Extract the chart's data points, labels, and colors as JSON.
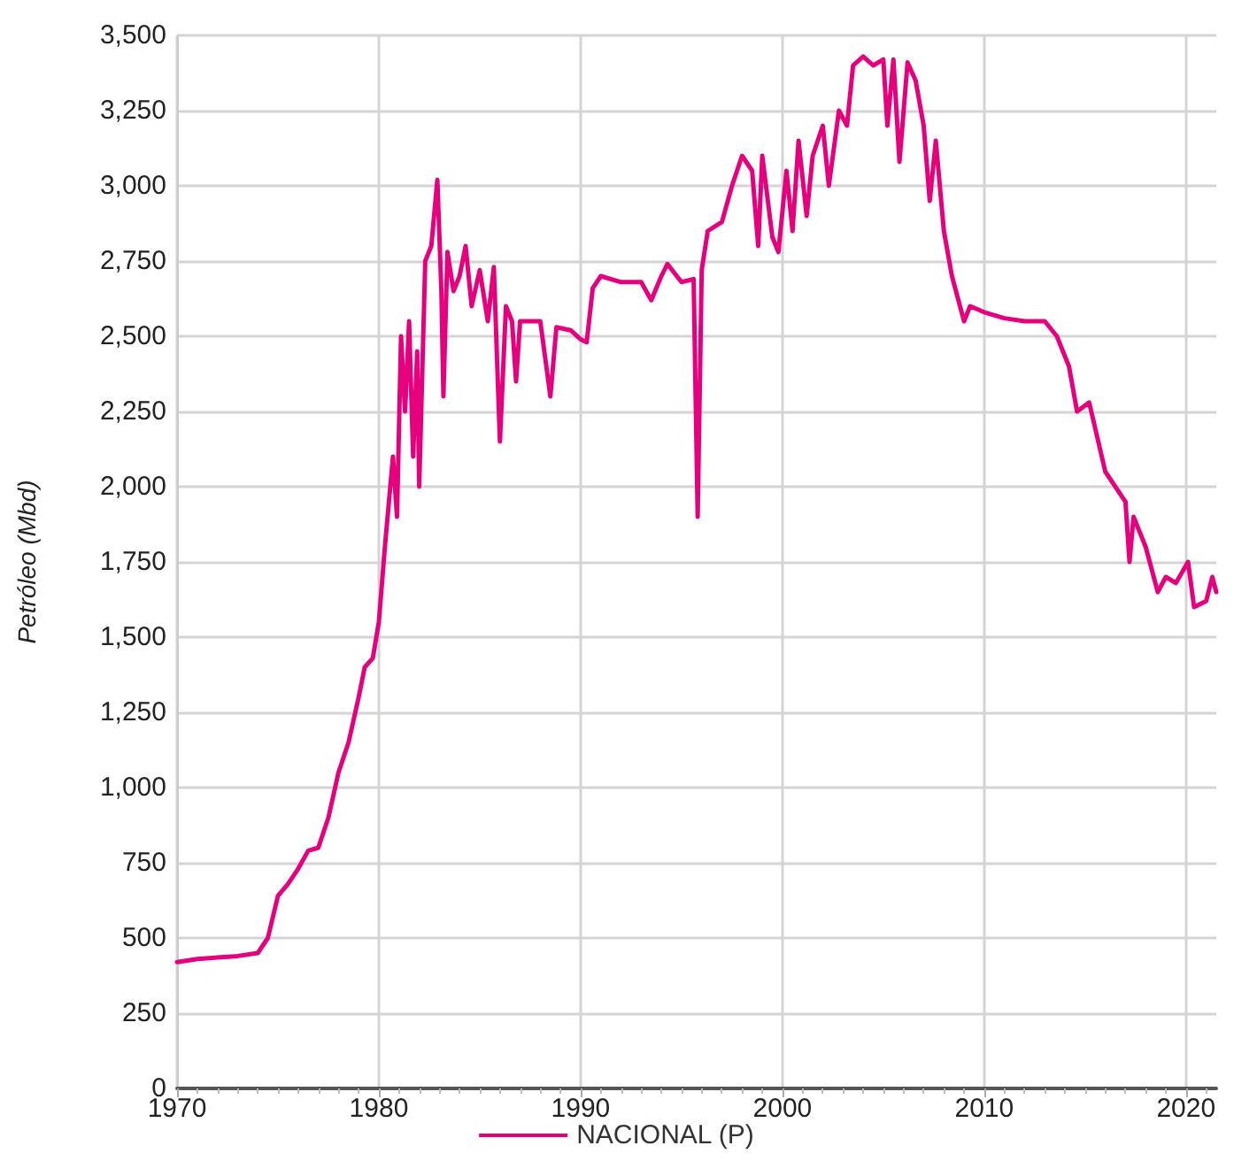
{
  "chart_data": {
    "type": "line",
    "ylabel": "Petróleo (Mbd)",
    "legend": "bottom",
    "grid": true,
    "marker": "none",
    "line_style": "solid",
    "xlim": [
      1970,
      2021.5
    ],
    "xticks": [
      1970,
      1980,
      1990,
      2000,
      2010,
      2020
    ],
    "ylim": [
      0,
      3500
    ],
    "yticks": [
      {
        "value": 0,
        "label": "0"
      },
      {
        "value": 250,
        "label": "250"
      },
      {
        "value": 500,
        "label": "500"
      },
      {
        "value": 750,
        "label": "750"
      },
      {
        "value": 1000,
        "label": "1,000"
      },
      {
        "value": 1250,
        "label": "1,250"
      },
      {
        "value": 1500,
        "label": "1,500"
      },
      {
        "value": 1750,
        "label": "1,750"
      },
      {
        "value": 2000,
        "label": "2,000"
      },
      {
        "value": 2250,
        "label": "2,250"
      },
      {
        "value": 2500,
        "label": "2,500"
      },
      {
        "value": 2750,
        "label": "2,750"
      },
      {
        "value": 3000,
        "label": "3,000"
      },
      {
        "value": 3250,
        "label": "3,250"
      },
      {
        "value": 3500,
        "label": "3,500"
      }
    ],
    "x": [
      1970,
      1971,
      1972,
      1973,
      1974,
      1974.5,
      1975,
      1975.5,
      1976,
      1976.5,
      1977,
      1977.5,
      1978,
      1978.5,
      1979,
      1979.3,
      1979.7,
      1980,
      1980.3,
      1980.5,
      1980.7,
      1980.9,
      1981.1,
      1981.3,
      1981.5,
      1981.7,
      1981.9,
      1982,
      1982.2,
      1982.3,
      1982.6,
      1982.9,
      1983.1,
      1983.2,
      1983.4,
      1983.7,
      1984,
      1984.3,
      1984.6,
      1985,
      1985.4,
      1985.7,
      1986,
      1986.3,
      1986.6,
      1986.8,
      1987,
      1988,
      1988.5,
      1988.8,
      1989.5,
      1990,
      1990.3,
      1990.6,
      1991,
      1992,
      1993,
      1993.5,
      1994,
      1994.3,
      1995,
      1995.6,
      1995.8,
      1996,
      1996.3,
      1997,
      1997.5,
      1998,
      1998.5,
      1998.8,
      1999,
      1999.5,
      1999.8,
      2000.2,
      2000.5,
      2000.8,
      2001.2,
      2001.5,
      2002,
      2002.3,
      2002.8,
      2003.2,
      2003.5,
      2004,
      2004.5,
      2005,
      2005.2,
      2005.5,
      2005.8,
      2006.2,
      2006.6,
      2007,
      2007.3,
      2007.6,
      2008,
      2008.4,
      2009,
      2009.3,
      2010,
      2011,
      2012,
      2013,
      2013.6,
      2014.2,
      2014.6,
      2015.2,
      2016,
      2017,
      2017.2,
      2017.4,
      2018,
      2018.6,
      2019,
      2019.5,
      2020.1,
      2020.4,
      2021,
      2021.3,
      2021.5
    ],
    "series": [
      {
        "name": "NACIONAL (P)",
        "color": "#e6007e",
        "values": [
          420,
          430,
          435,
          440,
          450,
          500,
          640,
          680,
          730,
          790,
          800,
          900,
          1050,
          1150,
          1300,
          1400,
          1430,
          1550,
          1800,
          1950,
          2100,
          1900,
          2500,
          2250,
          2550,
          2100,
          2450,
          2000,
          2500,
          2750,
          2800,
          3020,
          2650,
          2300,
          2780,
          2650,
          2700,
          2800,
          2600,
          2720,
          2550,
          2730,
          2150,
          2600,
          2550,
          2350,
          2550,
          2550,
          2300,
          2530,
          2520,
          2490,
          2480,
          2660,
          2700,
          2680,
          2680,
          2620,
          2700,
          2740,
          2680,
          2690,
          1900,
          2720,
          2850,
          2880,
          3000,
          3100,
          3050,
          2800,
          3100,
          2830,
          2780,
          3050,
          2850,
          3150,
          2900,
          3100,
          3200,
          3000,
          3250,
          3200,
          3400,
          3430,
          3400,
          3420,
          3200,
          3420,
          3080,
          3410,
          3350,
          3200,
          2950,
          3150,
          2850,
          2700,
          2550,
          2600,
          2580,
          2560,
          2550,
          2550,
          2500,
          2400,
          2250,
          2280,
          2050,
          1950,
          1750,
          1900,
          1800,
          1650,
          1700,
          1680,
          1750,
          1600,
          1620,
          1700,
          1650
        ]
      }
    ]
  }
}
